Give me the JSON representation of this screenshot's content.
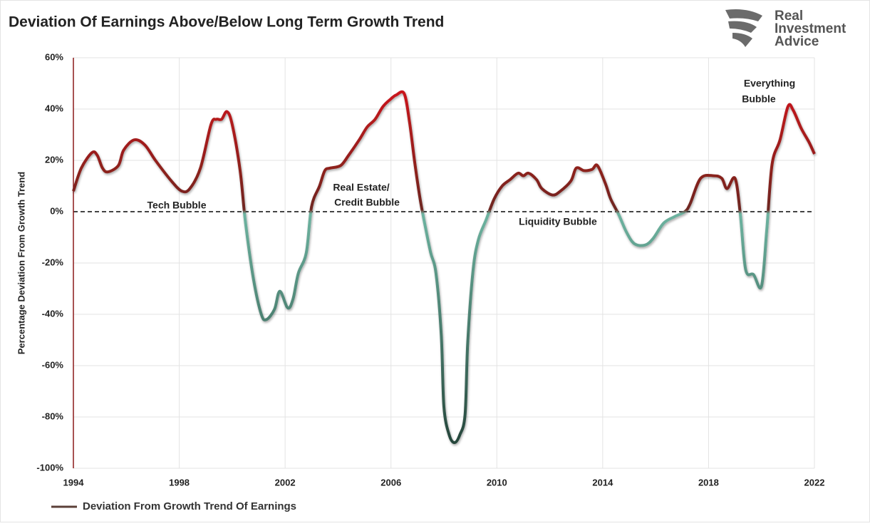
{
  "chart_data": {
    "type": "line",
    "title": "Deviation Of Earnings Above/Below Long Term Growth Trend",
    "brand": [
      "Real",
      "Investment",
      "Advice"
    ],
    "y_label": "Percentage Deviation From Growth Trend",
    "xlim": [
      1994,
      2022
    ],
    "xticks": [
      1994,
      1998,
      2002,
      2006,
      2010,
      2014,
      2018,
      2022
    ],
    "ylim": [
      -100,
      60
    ],
    "yticks": [
      {
        "value": -100,
        "label": "-100%"
      },
      {
        "value": -80,
        "label": "-80%"
      },
      {
        "value": -60,
        "label": "-60%"
      },
      {
        "value": -40,
        "label": "-40%"
      },
      {
        "value": -20,
        "label": "-20%"
      },
      {
        "value": 0,
        "label": "0%"
      },
      {
        "value": 20,
        "label": "20%"
      },
      {
        "value": 40,
        "label": "40%"
      },
      {
        "value": 60,
        "label": "60%"
      }
    ],
    "grid": true,
    "legend": "bottom-left",
    "annotations": [
      "Tech Bubble",
      "Real Estate/",
      "Credit Bubble",
      "Liquidity Bubble",
      "Everything",
      "Bubble"
    ],
    "series": [
      {
        "name": "Deviation From Growth Trend Of Earnings",
        "color": "#5b4038",
        "color_above": "#e3121b",
        "color_below": "#6db3a0",
        "x": [
          1994.0,
          1994.3,
          1994.7,
          1994.9,
          1995.1,
          1995.3,
          1995.7,
          1995.9,
          1996.3,
          1996.7,
          1997.1,
          1997.7,
          1998.1,
          1998.4,
          1998.8,
          1999.2,
          1999.4,
          1999.6,
          1999.8,
          2000.0,
          2000.3,
          2000.5,
          2000.8,
          2001.1,
          2001.3,
          2001.6,
          2001.8,
          2002.1,
          2002.3,
          2002.5,
          2002.8,
          2003.0,
          2003.3,
          2003.5,
          2003.7,
          2004.1,
          2004.4,
          2004.8,
          2005.1,
          2005.4,
          2005.7,
          2006.0,
          2006.2,
          2006.5,
          2006.7,
          2006.9,
          2007.1,
          2007.3,
          2007.5,
          2007.7,
          2007.9,
          2008.0,
          2008.2,
          2008.4,
          2008.6,
          2008.8,
          2008.9,
          2009.1,
          2009.3,
          2009.6,
          2009.9,
          2010.2,
          2010.5,
          2010.8,
          2011.0,
          2011.2,
          2011.5,
          2011.7,
          2012.1,
          2012.4,
          2012.8,
          2013.0,
          2013.3,
          2013.6,
          2013.8,
          2014.1,
          2014.3,
          2014.6,
          2014.9,
          2015.2,
          2015.6,
          2015.9,
          2016.3,
          2016.7,
          2017.1,
          2017.3,
          2017.7,
          2018.2,
          2018.5,
          2018.7,
          2019.0,
          2019.2,
          2019.4,
          2019.7,
          2020.0,
          2020.2,
          2020.4,
          2020.7,
          2021.0,
          2021.2,
          2021.5,
          2021.8,
          2022.0
        ],
        "values": [
          8,
          17,
          23,
          22,
          17,
          15.5,
          18,
          24,
          28,
          26,
          20,
          12,
          8,
          9,
          17,
          34,
          36,
          36,
          39,
          34,
          16,
          -4,
          -26,
          -40,
          -42,
          -38,
          -31,
          -37.5,
          -34,
          -24,
          -16,
          2,
          10,
          16,
          17,
          18,
          22,
          28,
          33,
          36,
          41,
          44,
          45.5,
          46,
          35,
          19,
          5,
          -6,
          -16,
          -24,
          -48,
          -76,
          -87,
          -90,
          -87,
          -79,
          -51,
          -23,
          -11,
          -3,
          5,
          10,
          12.5,
          15,
          14,
          15,
          12.5,
          9,
          6.5,
          8,
          12,
          17,
          16,
          16.5,
          18,
          11,
          5,
          -1,
          -8,
          -12.5,
          -13,
          -10.5,
          -4.5,
          -2,
          0,
          3,
          13,
          14,
          13,
          9,
          13,
          -1,
          -22.5,
          -24.5,
          -29,
          -7,
          18.5,
          28,
          41,
          39.5,
          32.5,
          27,
          22.5
        ]
      }
    ]
  }
}
